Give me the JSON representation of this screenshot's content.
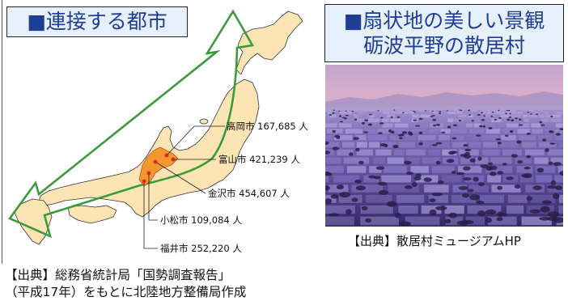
{
  "left_panel": {
    "title": "■連接する都市",
    "cities": [
      {
        "name": "高岡市",
        "population": "167,685",
        "unit": "人"
      },
      {
        "name": "富山市",
        "population": "421,239",
        "unit": "人"
      },
      {
        "name": "金沢市",
        "population": "454,607",
        "unit": "人"
      },
      {
        "name": "小松市",
        "population": "109,084",
        "unit": "人"
      },
      {
        "name": "福井市",
        "population": "252,220",
        "unit": "人"
      }
    ],
    "source_line1": "【出典】総務省統計局「国勢調査報告」",
    "source_line2": "（平成17年）をもとに北陸地方整備局作成"
  },
  "right_panel": {
    "title_line1": "■扇状地の美しい景観",
    "title_line2": "砺波平野の散居村",
    "photo_caption": "【出典】散居村ミュージアムHP"
  },
  "colors": {
    "title_text": "#1f3d94",
    "title_box_bg": "#e6f0fa",
    "title_box_border": "#222222",
    "map_land": "#fce4b4",
    "map_outline": "#333333",
    "arrow": "#3c9a3c",
    "city_cluster": "#f2962f",
    "city_dot": "#e0241b"
  }
}
